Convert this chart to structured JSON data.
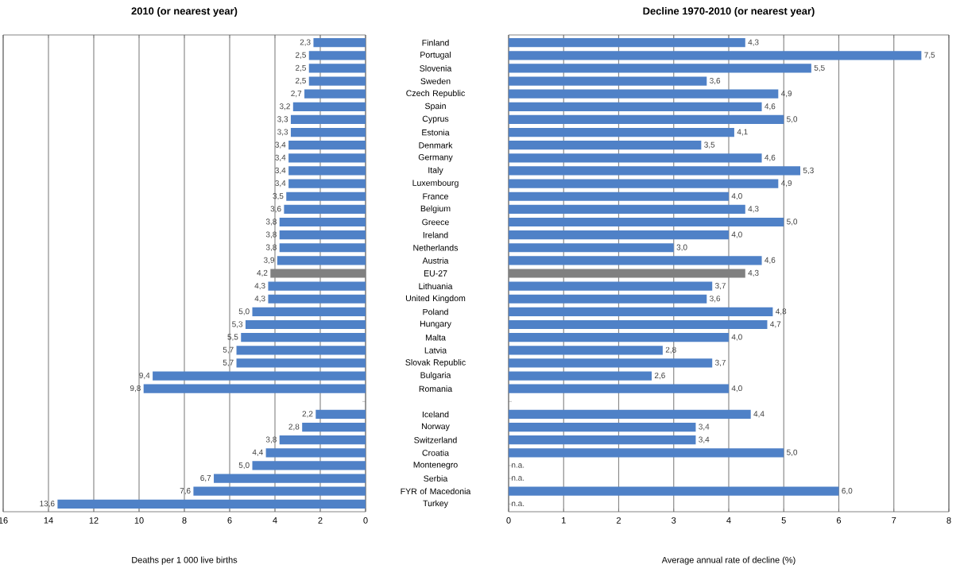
{
  "chart_data": [
    {
      "type": "bar",
      "orientation": "horizontal",
      "title": "2010 (or nearest year)",
      "xlabel": "Deaths per 1 000 live births",
      "categories": [
        "Finland",
        "Portugal",
        "Slovenia",
        "Sweden",
        "Czech Republic",
        "Spain",
        "Cyprus",
        "Estonia",
        "Denmark",
        "Germany",
        "Italy",
        "Luxembourg",
        "France",
        "Belgium",
        "Greece",
        "Ireland",
        "Netherlands",
        "Austria",
        "EU-27",
        "Lithuania",
        "United Kingdom",
        "Poland",
        "Hungary",
        "Malta",
        "Latvia",
        "Slovak Republic",
        "Bulgaria",
        "Romania",
        null,
        "Iceland",
        "Norway",
        "Switzerland",
        "Croatia",
        "Montenegro",
        "Serbia",
        "FYR of Macedonia",
        "Turkey"
      ],
      "values": [
        2.3,
        2.5,
        2.5,
        2.5,
        2.7,
        3.2,
        3.3,
        3.3,
        3.4,
        3.4,
        3.4,
        3.4,
        3.5,
        3.6,
        3.8,
        3.8,
        3.8,
        3.9,
        4.2,
        4.3,
        4.3,
        5.0,
        5.3,
        5.5,
        5.7,
        5.7,
        9.4,
        9.8,
        null,
        2.2,
        2.8,
        3.8,
        4.4,
        5.0,
        6.7,
        7.6,
        13.6
      ],
      "value_labels": [
        "2,3",
        "2,5",
        "2,5",
        "2,5",
        "2,7",
        "3,2",
        "3,3",
        "3,3",
        "3,4",
        "3,4",
        "3,4",
        "3,4",
        "3,5",
        "3,6",
        "3,8",
        "3,8",
        "3,8",
        "3,9",
        "4,2",
        "4,3",
        "4,3",
        "5,0",
        "5,3",
        "5,5",
        "5,7",
        "5,7",
        "9,4",
        "9,8",
        null,
        "2,2",
        "2,8",
        "3,8",
        "4,4",
        "5,0",
        "6,7",
        "7,6",
        "13,6"
      ],
      "colors": [
        "#4f81c7",
        "#4f81c7",
        "#4f81c7",
        "#4f81c7",
        "#4f81c7",
        "#4f81c7",
        "#4f81c7",
        "#4f81c7",
        "#4f81c7",
        "#4f81c7",
        "#4f81c7",
        "#4f81c7",
        "#4f81c7",
        "#4f81c7",
        "#4f81c7",
        "#4f81c7",
        "#4f81c7",
        "#4f81c7",
        "#808080",
        "#4f81c7",
        "#4f81c7",
        "#4f81c7",
        "#4f81c7",
        "#4f81c7",
        "#4f81c7",
        "#4f81c7",
        "#4f81c7",
        "#4f81c7",
        "#4f81c7",
        "#4f81c7",
        "#4f81c7",
        "#4f81c7",
        "#4f81c7",
        "#4f81c7",
        "#4f81c7",
        "#4f81c7",
        "#4f81c7"
      ],
      "xlim": [
        16,
        0
      ],
      "xticks": [
        0,
        2,
        4,
        6,
        8,
        10,
        12,
        14,
        16
      ],
      "grid": "x"
    },
    {
      "type": "bar",
      "orientation": "horizontal",
      "title": "Decline 1970-2010 (or nearest year)",
      "xlabel": "Average annual rate of decline (%)",
      "categories": [
        null,
        null,
        null,
        null,
        null,
        null,
        null,
        null,
        null,
        null,
        null,
        null,
        null,
        null,
        null,
        null,
        null,
        null,
        null,
        null,
        null,
        null,
        null,
        null,
        null,
        null,
        null,
        null,
        null,
        null,
        null,
        null,
        null,
        null,
        null,
        null,
        null
      ],
      "values": [
        4.3,
        7.5,
        5.5,
        3.6,
        4.9,
        4.6,
        5.0,
        4.1,
        3.5,
        4.6,
        5.3,
        4.9,
        4.0,
        4.3,
        5.0,
        4.0,
        3.0,
        4.6,
        4.3,
        3.7,
        3.6,
        4.8,
        4.7,
        4.0,
        2.8,
        3.7,
        2.6,
        4.0,
        null,
        4.4,
        3.4,
        3.4,
        5.0,
        null,
        null,
        6.0,
        null
      ],
      "value_labels": [
        "4,3",
        "7,5",
        "5,5",
        "3,6",
        "4,9",
        "4,6",
        "5,0",
        "4,1",
        "3,5",
        "4,6",
        "5,3",
        "4,9",
        "4,0",
        "4,3",
        "5,0",
        "4,0",
        "3,0",
        "4,6",
        "4,3",
        "3,7",
        "3,6",
        "4,8",
        "4,7",
        "4,0",
        "2,8",
        "3,7",
        "2,6",
        "4,0",
        null,
        "4,4",
        "3,4",
        "3,4",
        "5,0",
        "n.a.",
        "n.a.",
        "6,0",
        "n.a."
      ],
      "colors": [
        "#4f81c7",
        "#4f81c7",
        "#4f81c7",
        "#4f81c7",
        "#4f81c7",
        "#4f81c7",
        "#4f81c7",
        "#4f81c7",
        "#4f81c7",
        "#4f81c7",
        "#4f81c7",
        "#4f81c7",
        "#4f81c7",
        "#4f81c7",
        "#4f81c7",
        "#4f81c7",
        "#4f81c7",
        "#4f81c7",
        "#808080",
        "#4f81c7",
        "#4f81c7",
        "#4f81c7",
        "#4f81c7",
        "#4f81c7",
        "#4f81c7",
        "#4f81c7",
        "#4f81c7",
        "#4f81c7",
        "#4f81c7",
        "#4f81c7",
        "#4f81c7",
        "#4f81c7",
        "#4f81c7",
        "#4f81c7",
        "#4f81c7",
        "#4f81c7",
        "#4f81c7"
      ],
      "xlim": [
        0,
        8
      ],
      "xticks": [
        0,
        1,
        2,
        3,
        4,
        5,
        6,
        7,
        8
      ],
      "grid": "x"
    }
  ]
}
